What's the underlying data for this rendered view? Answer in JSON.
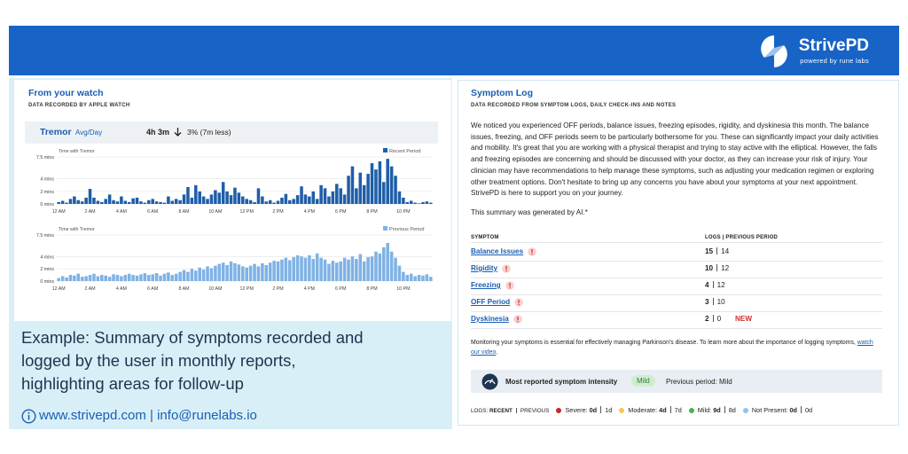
{
  "header": {
    "brand": "StrivePD",
    "tagline": "powered by rune labs"
  },
  "watch": {
    "title": "From your watch",
    "subtitle": "DATA RECORDED BY APPLE WATCH",
    "metric": "Tremor",
    "metric_unit": "Avg/Day",
    "average": "4h 3m",
    "change": "3% (7m less)"
  },
  "chart_data": [
    {
      "type": "bar",
      "title": "Time with Tremor",
      "categories": [
        "12 AM",
        null,
        null,
        null,
        null,
        null,
        null,
        null,
        "2 AM",
        null,
        null,
        null,
        null,
        null,
        null,
        null,
        "4 AM",
        null,
        null,
        null,
        null,
        null,
        null,
        null,
        "6 AM",
        null,
        null,
        null,
        null,
        null,
        null,
        null,
        "8 AM",
        null,
        null,
        null,
        null,
        null,
        null,
        null,
        "10 AM",
        null,
        null,
        null,
        null,
        null,
        null,
        null,
        "12 PM",
        null,
        null,
        null,
        null,
        null,
        null,
        null,
        "2 PM",
        null,
        null,
        null,
        null,
        null,
        null,
        null,
        "4 PM",
        null,
        null,
        null,
        null,
        null,
        null,
        null,
        "6 PM",
        null,
        null,
        null,
        null,
        null,
        null,
        null,
        "8 PM",
        null,
        null,
        null,
        null,
        null,
        null,
        null,
        "10 PM",
        null,
        null,
        null,
        null,
        null,
        null,
        null
      ],
      "series": [
        {
          "name": "Recent Period",
          "color": "#1f5ea8",
          "values": [
            0.3,
            0.5,
            0.2,
            0.8,
            1.2,
            0.6,
            0.4,
            1.0,
            2.4,
            1.0,
            0.5,
            0.3,
            0.8,
            1.5,
            0.6,
            0.4,
            1.2,
            0.5,
            0.3,
            0.9,
            1.0,
            0.4,
            0.2,
            0.6,
            0.8,
            0.4,
            0.3,
            0.2,
            1.2,
            0.5,
            0.8,
            0.6,
            1.5,
            2.7,
            1.0,
            3.0,
            2.0,
            1.2,
            0.8,
            1.5,
            2.2,
            1.8,
            3.5,
            2.0,
            1.4,
            2.6,
            1.8,
            1.2,
            0.8,
            0.6,
            0.3,
            2.5,
            1.2,
            0.4,
            0.6,
            0.2,
            0.5,
            1.0,
            1.6,
            0.6,
            0.8,
            1.4,
            2.8,
            1.5,
            1.2,
            2.0,
            0.8,
            3.0,
            2.5,
            1.2,
            2.0,
            3.2,
            2.5,
            1.5,
            4.5,
            6.0,
            2.5,
            5.0,
            3.0,
            4.8,
            6.5,
            5.5,
            6.8,
            3.5,
            7.2,
            6.0,
            4.5,
            2.0,
            1.0,
            0.3,
            0.5,
            0.2,
            0.1,
            0.3,
            0.4,
            0.2
          ]
        }
      ],
      "ylim": [
        0,
        7.5
      ],
      "yticks": [
        {
          "value": 0,
          "label": "0 mins"
        },
        {
          "value": 2,
          "label": "2 mins"
        },
        {
          "value": 4,
          "label": "4 mins"
        },
        {
          "value": 7.5,
          "label": "7.5 mins"
        }
      ],
      "grid": true,
      "legend": "top-right"
    },
    {
      "type": "bar",
      "title": "Time with Tremor",
      "categories": [
        "12 AM",
        null,
        null,
        null,
        null,
        null,
        null,
        null,
        "2 AM",
        null,
        null,
        null,
        null,
        null,
        null,
        null,
        "4 AM",
        null,
        null,
        null,
        null,
        null,
        null,
        null,
        "6 AM",
        null,
        null,
        null,
        null,
        null,
        null,
        null,
        "8 AM",
        null,
        null,
        null,
        null,
        null,
        null,
        null,
        "10 AM",
        null,
        null,
        null,
        null,
        null,
        null,
        null,
        "12 PM",
        null,
        null,
        null,
        null,
        null,
        null,
        null,
        "2 PM",
        null,
        null,
        null,
        null,
        null,
        null,
        null,
        "4 PM",
        null,
        null,
        null,
        null,
        null,
        null,
        null,
        "6 PM",
        null,
        null,
        null,
        null,
        null,
        null,
        null,
        "8 PM",
        null,
        null,
        null,
        null,
        null,
        null,
        null,
        "10 PM",
        null,
        null,
        null,
        null,
        null,
        null,
        null
      ],
      "series": [
        {
          "name": "Previous Period",
          "color": "#7fb2e5",
          "values": [
            0.5,
            0.8,
            0.6,
            1.0,
            0.9,
            1.2,
            0.7,
            0.8,
            1.0,
            1.2,
            0.8,
            1.0,
            0.9,
            0.7,
            1.1,
            1.0,
            0.8,
            1.0,
            1.2,
            1.0,
            0.9,
            1.1,
            1.3,
            1.0,
            1.1,
            1.3,
            0.9,
            1.2,
            1.4,
            1.0,
            1.2,
            1.5,
            1.8,
            1.5,
            2.0,
            1.7,
            2.2,
            1.9,
            2.4,
            2.1,
            2.5,
            2.8,
            3.0,
            2.6,
            3.2,
            2.9,
            2.7,
            2.4,
            2.2,
            2.5,
            2.8,
            2.4,
            2.9,
            2.6,
            3.0,
            3.3,
            3.2,
            3.5,
            3.8,
            3.4,
            3.9,
            4.2,
            4.0,
            3.8,
            4.2,
            3.6,
            4.5,
            3.8,
            3.5,
            2.8,
            3.3,
            3.0,
            3.2,
            3.8,
            3.5,
            4.0,
            3.6,
            4.4,
            3.2,
            3.9,
            4.0,
            4.8,
            4.5,
            5.5,
            6.2,
            4.8,
            3.8,
            2.5,
            1.5,
            1.0,
            1.2,
            0.8,
            1.0,
            0.9,
            1.1,
            0.7
          ]
        }
      ],
      "ylim": [
        0,
        7.5
      ],
      "yticks": [
        {
          "value": 0,
          "label": "0 mins"
        },
        {
          "value": 2,
          "label": "2 mins"
        },
        {
          "value": 4,
          "label": "4 mins"
        },
        {
          "value": 7.5,
          "label": "7.5 mins"
        }
      ],
      "grid": true,
      "legend": "top-right"
    }
  ],
  "caption": "Example: Summary of symptoms recorded and logged by the user in monthly reports, highlighting areas for follow-up",
  "contact": "www.strivepd.com | info@runelabs.io",
  "symptom_log": {
    "title": "Symptom Log",
    "subtitle": "DATA RECORDED FROM SYMPTOM LOGS, DAILY CHECK-INS AND NOTES",
    "summary": "We noticed you experienced OFF periods, balance issues, freezing episodes, rigidity, and dyskinesia this month. The balance issues, freezing, and OFF periods seem to be particularly bothersome for you. These can significantly impact your daily activities and mobility. It's great that you are working with a physical therapist and trying to stay active with the elliptical. However, the falls and freezing episodes are concerning and should be discussed with your doctor, as they can increase your risk of injury. Your clinician may have recommendations to help manage these symptoms, such as adjusting your medication regimen or exploring other treatment options. Don't hesitate to bring up any concerns you have about your symptoms at your next appointment. StrivePD is here to support you on your journey.",
    "ai_note": "This summary was generated by AI.*",
    "table": {
      "headers": [
        "SYMPTOM",
        "LOGS | PREVIOUS PERIOD"
      ],
      "rows": [
        {
          "symptom": "Balance Issues",
          "logs": 15,
          "previous": 14
        },
        {
          "symptom": "Rigidity",
          "logs": 10,
          "previous": 12
        },
        {
          "symptom": "Freezing",
          "logs": 4,
          "previous": 12
        },
        {
          "symptom": "OFF Period",
          "logs": 3,
          "previous": 10
        },
        {
          "symptom": "Dyskinesia",
          "logs": 2,
          "previous": 0,
          "flag": "NEW"
        }
      ]
    },
    "note": "Monitoring your symptoms is essential for effectively managing Parkinson's disease. To learn more about the importance of logging symptoms, ",
    "note_link": "watch our video",
    "note_end": ".",
    "intensity": {
      "label": "Most reported symptom intensity",
      "value": "Mild",
      "previous": "Previous period: Mild"
    },
    "legend": {
      "title": "LOGS:",
      "recent": "RECENT",
      "previous": "PREVIOUS",
      "items": [
        {
          "name": "Severe:",
          "color": "#c62828",
          "recent": "0d",
          "previous": "1d"
        },
        {
          "name": "Moderate:",
          "color": "#f2c94c",
          "recent": "4d",
          "previous": "7d"
        },
        {
          "name": "Mild:",
          "color": "#4caf50",
          "recent": "9d",
          "previous": "8d"
        },
        {
          "name": "Not Present:",
          "color": "#8ec5ec",
          "recent": "0d",
          "previous": "0d"
        }
      ]
    }
  }
}
